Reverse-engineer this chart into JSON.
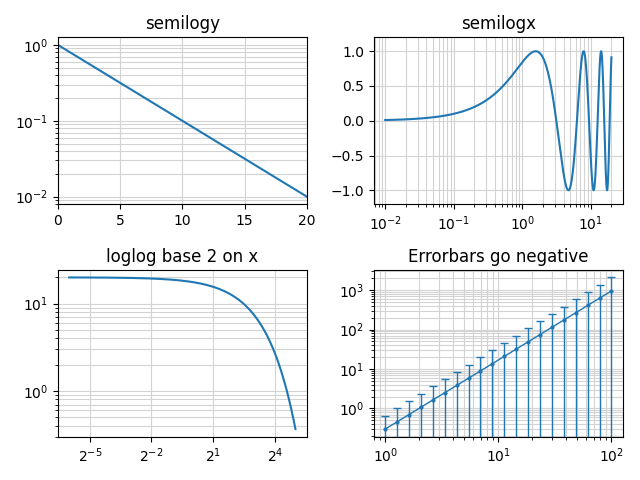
{
  "title_semilogy": "semilogy",
  "title_semilogx": "semilogx",
  "title_loglog": "loglog base 2 on x",
  "title_errorbars": "Errorbars go negative",
  "line_color": "#1f77b4",
  "figsize": [
    6.4,
    4.8
  ],
  "dpi": 100
}
